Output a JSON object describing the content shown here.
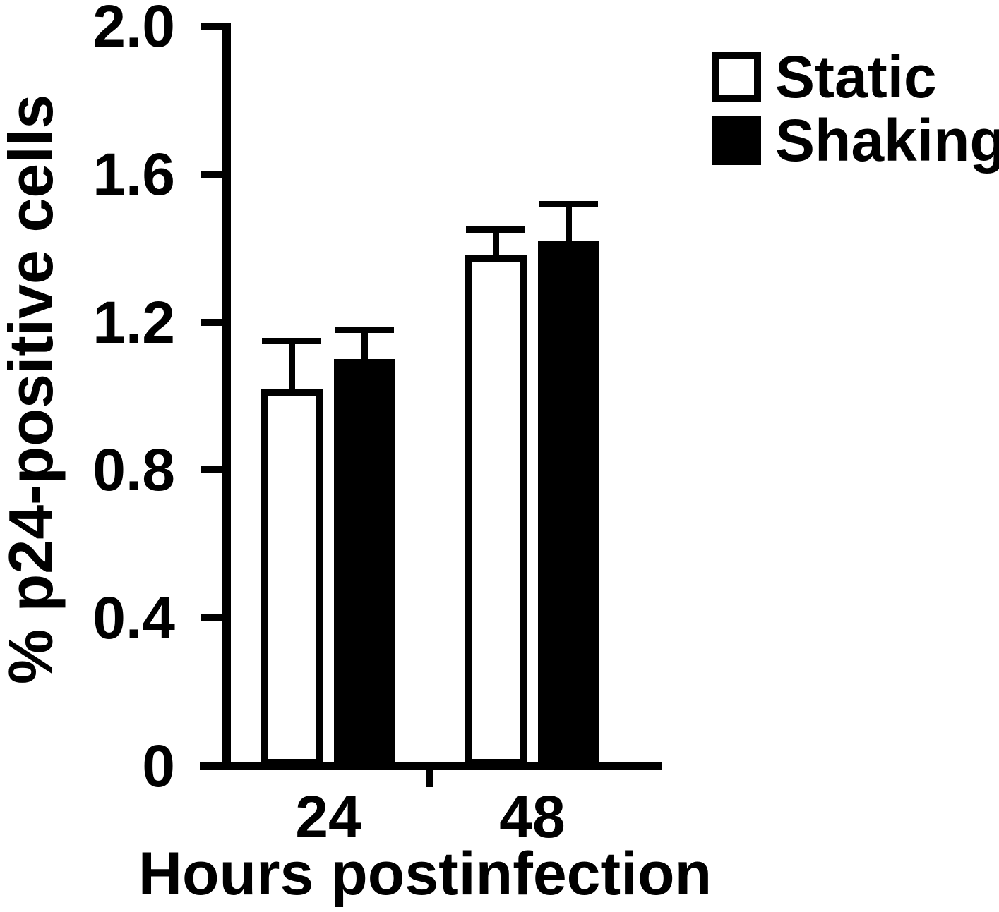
{
  "figure": {
    "background": "#ffffff",
    "ink_color": "#000000"
  },
  "chart_data": {
    "type": "bar",
    "title": "",
    "xlabel": "Hours postinfection",
    "ylabel": "% p24-positive cells",
    "categories": [
      "24",
      "48"
    ],
    "series": [
      {
        "name": "Static",
        "fill": "#ffffff",
        "values": [
          1.02,
          1.38
        ],
        "errors": [
          0.13,
          0.07
        ]
      },
      {
        "name": "Shaking",
        "fill": "#000000",
        "values": [
          1.1,
          1.42
        ],
        "errors": [
          0.08,
          0.1
        ]
      }
    ],
    "ylim": [
      0,
      2.0
    ],
    "yticks": [
      "2.0",
      "1.6",
      "1.2",
      "0.8",
      "0.4",
      "0"
    ],
    "ytick_values": [
      2.0,
      1.6,
      1.2,
      0.8,
      0.4,
      0
    ],
    "error_direction": "upper",
    "grid": false,
    "legend_position": "top-right"
  }
}
